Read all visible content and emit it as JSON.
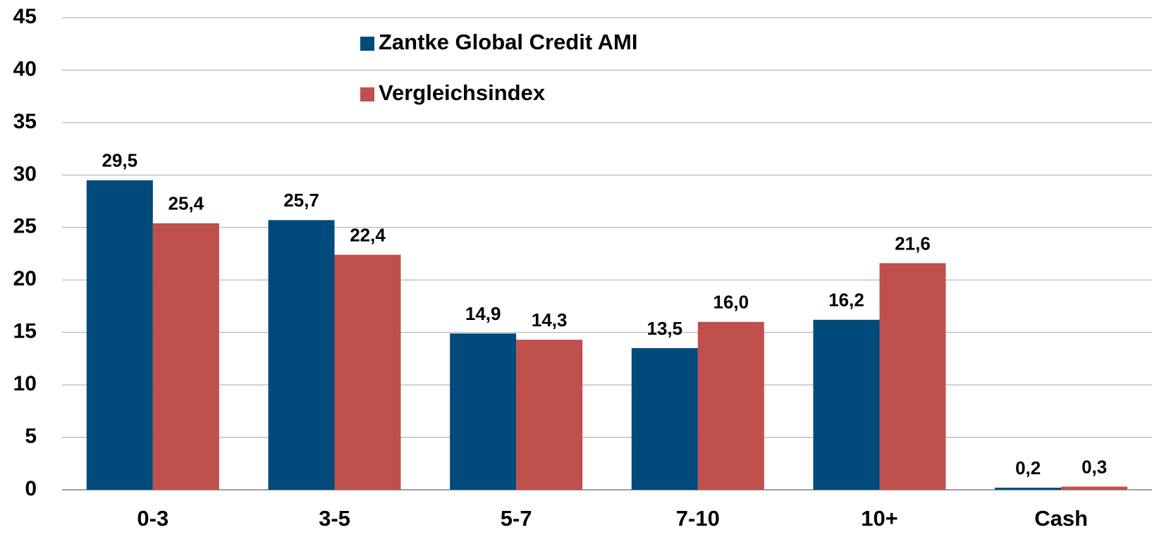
{
  "chart_data": {
    "type": "bar",
    "categories": [
      "0-3",
      "3-5",
      "5-7",
      "7-10",
      "10+",
      "Cash"
    ],
    "series": [
      {
        "name": "Zantke Global Credit AMI",
        "color": "#004a7c",
        "values": [
          29.5,
          25.7,
          14.9,
          13.5,
          16.2,
          0.2
        ],
        "value_labels": [
          "29,5",
          "25,7",
          "14,9",
          "13,5",
          "16,2",
          "0,2"
        ]
      },
      {
        "name": "Vergleichsindex",
        "color": "#c0504d",
        "values": [
          25.4,
          22.4,
          14.3,
          16.0,
          21.6,
          0.3
        ],
        "value_labels": [
          "25,4",
          "22,4",
          "14,3",
          "16,0",
          "21,6",
          "0,3"
        ]
      }
    ],
    "ylim": [
      0,
      45
    ],
    "yticks": [
      0,
      5,
      10,
      15,
      20,
      25,
      30,
      35,
      40,
      45
    ],
    "grid": true,
    "legend": "top"
  }
}
